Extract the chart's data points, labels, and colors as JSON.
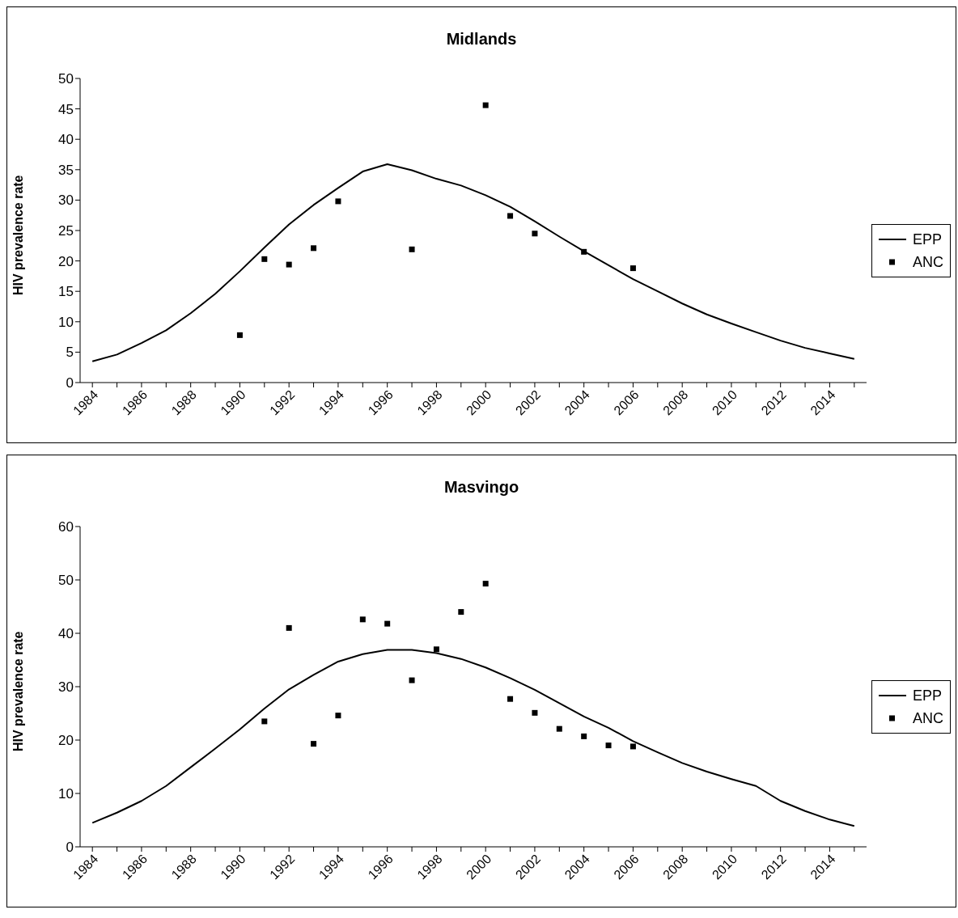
{
  "chart_data": [
    {
      "type": "line",
      "title": "Midlands",
      "ylabel": "HIV prevalence rate",
      "categories": [
        "1984",
        null,
        "1986",
        null,
        "1988",
        null,
        "1990",
        null,
        "1992",
        null,
        "1994",
        null,
        "1996",
        null,
        "1998",
        null,
        "2000",
        null,
        "2002",
        null,
        "2004",
        null,
        "2006",
        null,
        "2008",
        null,
        "2010",
        null,
        "2012",
        null,
        "2014",
        null
      ],
      "ylim": [
        0,
        50
      ],
      "yticks": [
        0,
        5,
        10,
        15,
        20,
        25,
        30,
        35,
        40,
        45,
        50
      ],
      "grid": false,
      "legend": "right",
      "series": [
        {
          "name": "EPP",
          "color": "#000000",
          "line_style": "solid",
          "marker": "none",
          "values": [
            3.5,
            4.6,
            6.5,
            8.6,
            11.4,
            14.6,
            18.3,
            22.2,
            26,
            29.2,
            32,
            34.7,
            35.9,
            34.9,
            33.5,
            32.4,
            30.8,
            28.9,
            26.5,
            24,
            21.6,
            19.3,
            17,
            15,
            13,
            11.2,
            9.7,
            8.3,
            6.9,
            5.7,
            4.8,
            3.9
          ]
        },
        {
          "name": "ANC",
          "type": "scatter",
          "color": "#000000",
          "marker": "square",
          "values": [
            null,
            null,
            null,
            null,
            null,
            null,
            7.8,
            20.3,
            19.4,
            22.1,
            29.8,
            null,
            null,
            21.9,
            null,
            null,
            45.6,
            27.4,
            24.5,
            null,
            21.5,
            null,
            18.8,
            null,
            null,
            null,
            null,
            null,
            null,
            null,
            null,
            null
          ]
        }
      ]
    },
    {
      "type": "line",
      "title": "Masvingo",
      "ylabel": "HIV prevalence rate",
      "categories": [
        "1984",
        null,
        "1986",
        null,
        "1988",
        null,
        "1990",
        null,
        "1992",
        null,
        "1994",
        null,
        "1996",
        null,
        "1998",
        null,
        "2000",
        null,
        "2002",
        null,
        "2004",
        null,
        "2006",
        null,
        "2008",
        null,
        "2010",
        null,
        "2012",
        null,
        "2014",
        null
      ],
      "ylim": [
        0,
        60
      ],
      "yticks": [
        0,
        10,
        20,
        30,
        40,
        50,
        60
      ],
      "grid": false,
      "legend": "right",
      "series": [
        {
          "name": "EPP",
          "color": "#000000",
          "line_style": "solid",
          "marker": "none",
          "values": [
            4.5,
            6.4,
            8.6,
            11.4,
            14.9,
            18.4,
            22,
            25.9,
            29.5,
            32.2,
            34.7,
            36.1,
            36.9,
            36.9,
            36.3,
            35.2,
            33.6,
            31.6,
            29.4,
            26.9,
            24.4,
            22.3,
            19.8,
            17.7,
            15.7,
            14.1,
            12.7,
            11.4,
            8.6,
            6.7,
            5.1,
            3.9
          ]
        },
        {
          "name": "ANC",
          "type": "scatter",
          "color": "#000000",
          "marker": "square",
          "values": [
            null,
            null,
            null,
            null,
            null,
            null,
            null,
            23.5,
            41,
            19.3,
            24.6,
            42.6,
            41.8,
            31.2,
            37,
            44,
            49.3,
            27.7,
            25.1,
            22.1,
            20.7,
            19,
            18.8,
            null,
            null,
            null,
            null,
            null,
            null,
            null,
            null,
            null
          ]
        }
      ]
    }
  ]
}
